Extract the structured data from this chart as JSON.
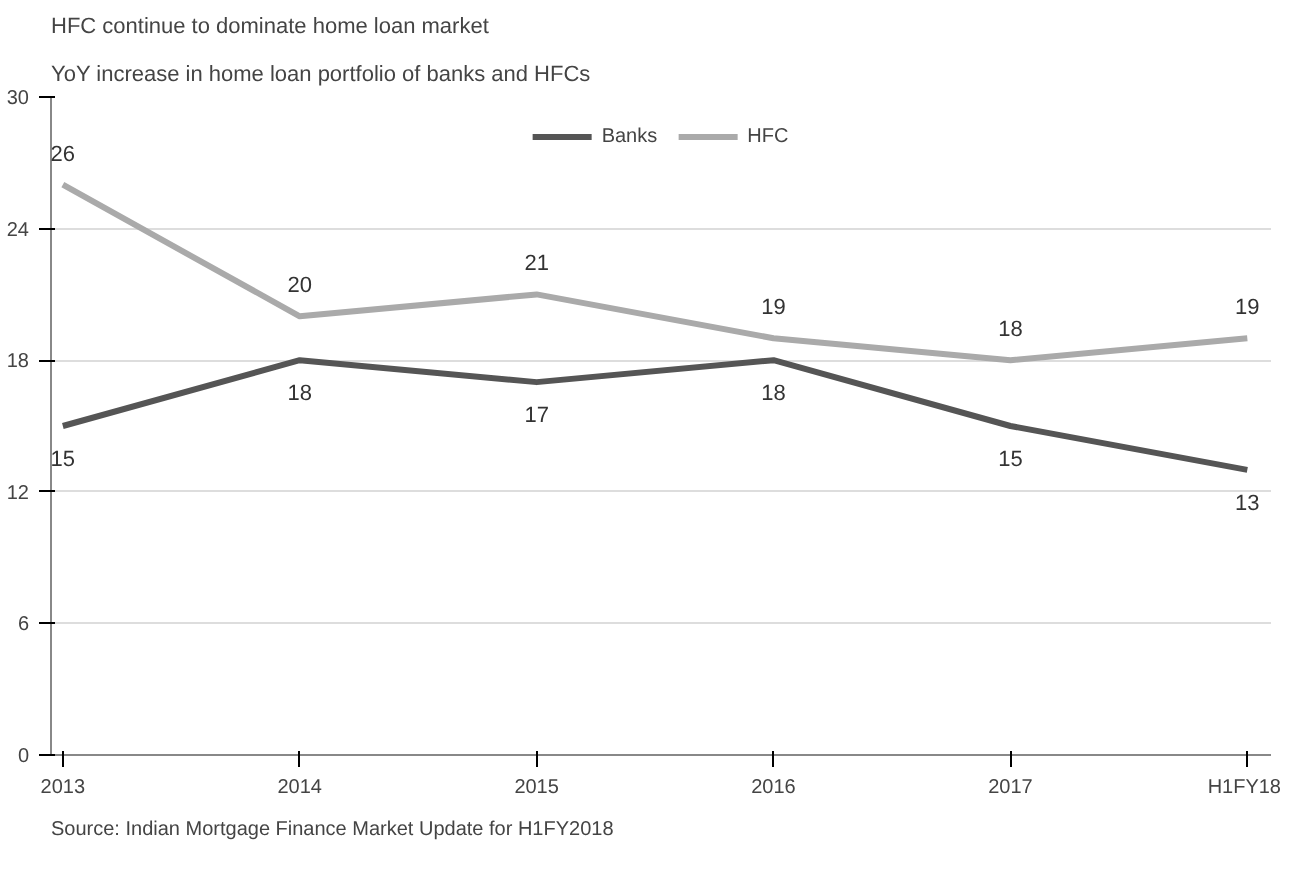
{
  "chart_data": {
    "type": "line",
    "title": "HFC continue to dominate home loan market",
    "subtitle": "YoY increase in home loan portfolio of banks and HFCs",
    "categories": [
      "2013",
      "2014",
      "2015",
      "2016",
      "2017",
      "H1FY18"
    ],
    "series": [
      {
        "name": "Banks",
        "color": "#555555",
        "values": [
          15,
          18,
          17,
          18,
          15,
          13
        ]
      },
      {
        "name": "HFC",
        "color": "#aaaaaa",
        "values": [
          26,
          20,
          21,
          19,
          18,
          19
        ]
      }
    ],
    "ylim": [
      0,
      30
    ],
    "yticks": [
      0,
      6,
      12,
      18,
      24,
      30
    ],
    "grid": "y",
    "legend": "top",
    "data_labels": true,
    "marker": "none",
    "line_style": "solid",
    "annotations": [
      "Source: Indian Mortgage Finance Market Update for H1FY2018"
    ]
  }
}
